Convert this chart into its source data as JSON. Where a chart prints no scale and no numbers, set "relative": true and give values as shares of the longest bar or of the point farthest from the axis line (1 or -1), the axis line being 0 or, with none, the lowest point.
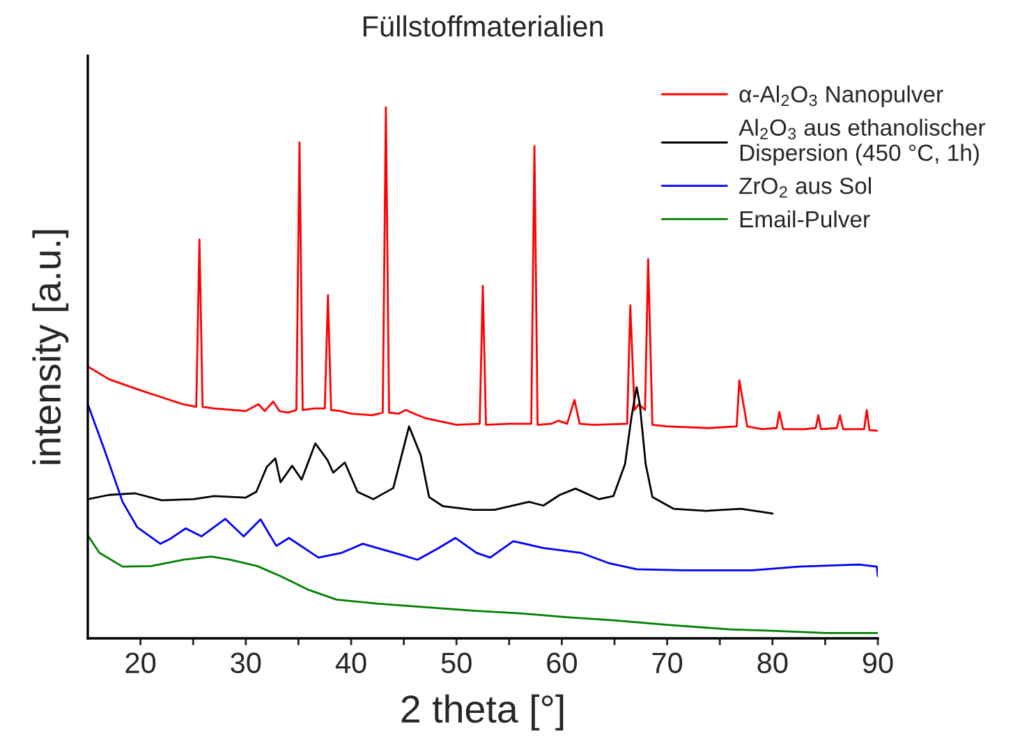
{
  "chart_data": {
    "type": "line",
    "title": "Füllstoffmaterialien",
    "xlabel": "2 theta [°]",
    "ylabel": "intensity [a.u.]",
    "relative": true,
    "xlim": [
      15,
      90
    ],
    "xticks": [
      20,
      {
        "value": 25,
        "label": null
      },
      30,
      {
        "value": 35,
        "label": null
      },
      40,
      {
        "value": 45,
        "label": null
      },
      50,
      {
        "value": 55,
        "label": null
      },
      60,
      {
        "value": 65,
        "label": null
      },
      70,
      {
        "value": 75,
        "label": null
      },
      80,
      {
        "value": 85,
        "label": null
      },
      90
    ],
    "tick_labels": "x",
    "grid": false,
    "legend": "top right",
    "marker": "none",
    "line_style": "solid",
    "series": [
      {
        "name": "α-Al$_{2}$O$_{3}$ Nanopulver",
        "color": "#ff0000",
        "x": [
          15,
          17,
          20,
          22,
          24,
          25.3,
          25.6,
          25.9,
          27,
          30,
          31.2,
          31.8,
          32.6,
          33.2,
          34,
          34.8,
          35.1,
          35.4,
          36.5,
          37.5,
          37.8,
          38.1,
          39,
          40,
          42,
          43,
          43.3,
          43.6,
          44.5,
          45.2,
          46,
          47,
          50,
          52.2,
          52.5,
          52.8,
          55,
          57.1,
          57.4,
          57.7,
          59,
          59.7,
          60.5,
          61.2,
          61.7,
          63,
          66.2,
          66.5,
          66.9,
          67.3,
          67.9,
          68.2,
          68.6,
          70,
          74,
          76.6,
          76.85,
          77.2,
          77.6,
          79,
          80.4,
          80.65,
          81,
          83,
          84.1,
          84.35,
          84.6,
          86.1,
          86.4,
          86.7,
          88.7,
          88.95,
          89.2,
          90
        ],
        "values": [
          0.512,
          0.488,
          0.467,
          0.454,
          0.441,
          0.436,
          0.751,
          0.436,
          0.433,
          0.428,
          0.441,
          0.428,
          0.446,
          0.428,
          0.425,
          0.43,
          0.934,
          0.43,
          0.433,
          0.433,
          0.646,
          0.43,
          0.428,
          0.423,
          0.42,
          0.425,
          1.0,
          0.425,
          0.423,
          0.43,
          0.423,
          0.415,
          0.402,
          0.404,
          0.664,
          0.402,
          0.404,
          0.404,
          0.927,
          0.402,
          0.404,
          0.41,
          0.404,
          0.449,
          0.404,
          0.402,
          0.404,
          0.627,
          0.43,
          0.441,
          0.43,
          0.714,
          0.402,
          0.399,
          0.396,
          0.399,
          0.486,
          0.446,
          0.399,
          0.394,
          0.396,
          0.426,
          0.394,
          0.394,
          0.396,
          0.42,
          0.394,
          0.396,
          0.42,
          0.394,
          0.394,
          0.43,
          0.392,
          0.391
        ]
      },
      {
        "name": "Al$_{2}$O$_{3}$ aus ethanolischer\nDispersion (450 °C, 1h)",
        "color": "#000000",
        "x": [
          15,
          17,
          19.5,
          22,
          25,
          27,
          30,
          31,
          32,
          32.8,
          33.3,
          34.4,
          35.3,
          36.6,
          37.75,
          38.3,
          39.4,
          40.6,
          42.1,
          44,
          45.5,
          46.6,
          47.4,
          48.7,
          51.6,
          53.6,
          56.9,
          58.25,
          59.8,
          61.3,
          63.5,
          64.9,
          66,
          66.6,
          67.1,
          67.4,
          67.96,
          68.6,
          70.6,
          73.7,
          77,
          80
        ],
        "values": [
          0.262,
          0.27,
          0.273,
          0.26,
          0.262,
          0.268,
          0.265,
          0.276,
          0.323,
          0.339,
          0.294,
          0.325,
          0.299,
          0.367,
          0.336,
          0.312,
          0.331,
          0.276,
          0.262,
          0.283,
          0.399,
          0.345,
          0.266,
          0.249,
          0.242,
          0.242,
          0.257,
          0.25,
          0.27,
          0.282,
          0.262,
          0.268,
          0.328,
          0.415,
          0.473,
          0.441,
          0.328,
          0.266,
          0.244,
          0.24,
          0.244,
          0.235
        ]
      },
      {
        "name": "ZrO$_{2}$ aus Sol",
        "color": "#0000ff",
        "x": [
          15,
          16.6,
          18.3,
          19.7,
          21.9,
          22.8,
          24.3,
          25.8,
          28.05,
          29.8,
          31.4,
          32.9,
          34.1,
          36.9,
          39.1,
          41.1,
          44.8,
          46.3,
          48.3,
          49.9,
          51.9,
          53.2,
          55.4,
          58.25,
          61.8,
          64.4,
          67.1,
          71.5,
          78.1,
          82.5,
          88.2,
          89.9,
          90
        ],
        "values": [
          0.441,
          0.354,
          0.257,
          0.209,
          0.178,
          0.187,
          0.207,
          0.192,
          0.225,
          0.192,
          0.224,
          0.174,
          0.189,
          0.152,
          0.161,
          0.178,
          0.157,
          0.148,
          0.17,
          0.189,
          0.161,
          0.152,
          0.183,
          0.17,
          0.161,
          0.142,
          0.13,
          0.128,
          0.128,
          0.135,
          0.139,
          0.135,
          0.117
        ]
      },
      {
        "name": "Email-Pulver",
        "color": "#008000",
        "x": [
          15,
          16.1,
          18.3,
          21,
          24.1,
          26.7,
          28.5,
          31.1,
          33.3,
          36,
          38.6,
          42.6,
          51.6,
          56,
          60.4,
          64.9,
          70.2,
          75.9,
          80.3,
          85.1,
          90
        ],
        "values": [
          0.194,
          0.161,
          0.135,
          0.136,
          0.148,
          0.154,
          0.148,
          0.136,
          0.117,
          0.091,
          0.073,
          0.065,
          0.052,
          0.047,
          0.04,
          0.034,
          0.025,
          0.017,
          0.014,
          0.01,
          0.01
        ]
      }
    ]
  }
}
